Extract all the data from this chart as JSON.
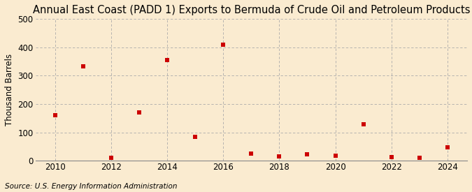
{
  "title": "Annual East Coast (PADD 1) Exports to Bermuda of Crude Oil and Petroleum Products",
  "ylabel": "Thousand Barrels",
  "source": "Source: U.S. Energy Information Administration",
  "years": [
    2010,
    2011,
    2012,
    2013,
    2014,
    2015,
    2016,
    2017,
    2018,
    2019,
    2020,
    2021,
    2022,
    2023,
    2024
  ],
  "values": [
    160,
    333,
    10,
    170,
    355,
    85,
    410,
    25,
    15,
    22,
    18,
    128,
    12,
    10,
    48
  ],
  "marker_color": "#cc0000",
  "marker": "s",
  "marker_size": 5,
  "background_color": "#faebd0",
  "grid_color": "#aaaaaa",
  "ylim": [
    0,
    500
  ],
  "yticks": [
    0,
    100,
    200,
    300,
    400,
    500
  ],
  "xticks": [
    2010,
    2012,
    2014,
    2016,
    2018,
    2020,
    2022,
    2024
  ],
  "title_fontsize": 10.5,
  "axis_fontsize": 8.5,
  "source_fontsize": 7.5
}
